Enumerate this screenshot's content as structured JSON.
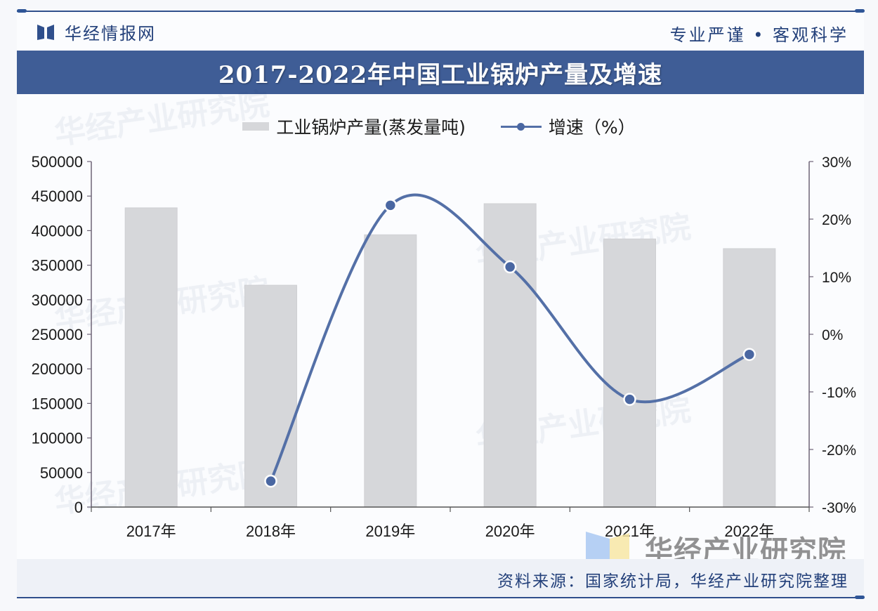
{
  "header": {
    "brand": "华经情报网",
    "slogan": "专业严谨 • 客观科学",
    "title": "2017-2022年中国工业锅炉产量及增速"
  },
  "legend": {
    "bar_label": "工业锅炉产量(蒸发量吨)",
    "line_label": "增速（%）"
  },
  "footer": {
    "source": "资料来源：国家统计局，华经产业研究院整理",
    "watermark": "华经产业研究院"
  },
  "colors": {
    "title_bar": "#3f5d96",
    "bar": "#d6d7da",
    "line": "#5470a7",
    "axis": "#6e6477",
    "brand_text": "#23407a"
  },
  "chart_data": {
    "type": "bar+line",
    "title": "2017-2022年中国工业锅炉产量及增速",
    "categories": [
      "2017年",
      "2018年",
      "2019年",
      "2020年",
      "2021年",
      "2022年"
    ],
    "series": [
      {
        "name": "工业锅炉产量(蒸发量吨)",
        "type": "bar",
        "axis": "left",
        "values": [
          433000,
          321000,
          394000,
          439000,
          388000,
          374000
        ]
      },
      {
        "name": "增速（%）",
        "type": "line",
        "axis": "right",
        "smooth": true,
        "values": [
          null,
          -25.5,
          22.4,
          11.7,
          -11.3,
          -3.5
        ]
      }
    ],
    "y_left": {
      "ylim": [
        0,
        500000
      ],
      "ticks": [
        "0",
        "50000",
        "100000",
        "150000",
        "200000",
        "250000",
        "300000",
        "350000",
        "400000",
        "450000",
        "500000"
      ]
    },
    "y_right": {
      "ylim": [
        -30,
        30
      ],
      "ticks": [
        "-30%",
        "-20%",
        "-10%",
        "0%",
        "10%",
        "20%",
        "30%"
      ]
    },
    "xlabel": "",
    "ylabel": "",
    "grid": false,
    "legend_position": "top"
  }
}
